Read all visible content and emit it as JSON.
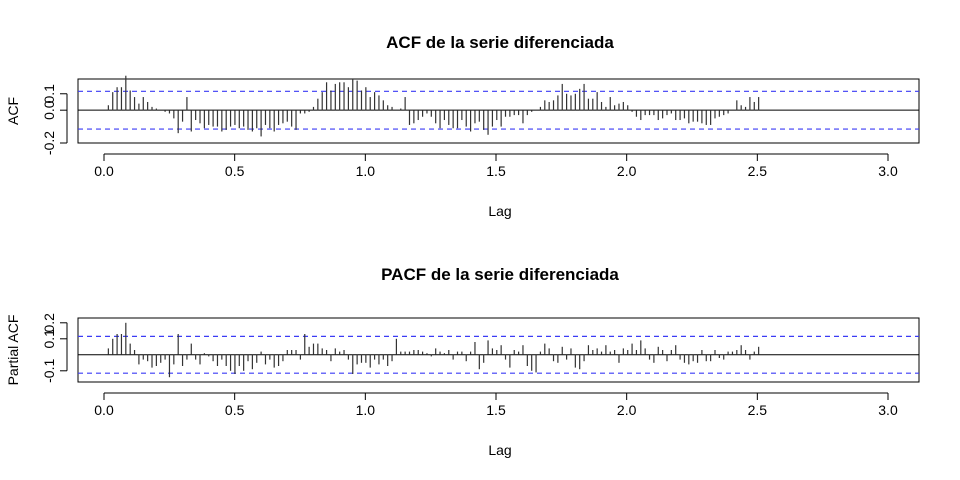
{
  "chart_data": [
    {
      "type": "bar",
      "title": "ACF de la serie diferenciada",
      "xlabel": "Lag",
      "ylabel": "ACF",
      "xlim": [
        0.0,
        3.0
      ],
      "ylim": [
        -0.2,
        0.19
      ],
      "x_ticks": [
        "0.0",
        "0.5",
        "1.0",
        "1.5",
        "2.0",
        "2.5",
        "3.0"
      ],
      "y_ticks": [
        "-0.2",
        "0.0",
        "0.1"
      ],
      "ci": 0.115,
      "lag_step": 0.0167,
      "values": [
        0.03,
        0.11,
        0.14,
        0.14,
        0.21,
        0.12,
        0.08,
        0.04,
        0.08,
        0.05,
        0.02,
        0.01,
        0.0,
        -0.01,
        -0.02,
        -0.05,
        -0.14,
        -0.07,
        0.08,
        -0.13,
        -0.06,
        -0.08,
        -0.11,
        -0.09,
        -0.1,
        -0.1,
        -0.13,
        -0.12,
        -0.1,
        -0.09,
        -0.11,
        -0.1,
        -0.12,
        -0.13,
        -0.11,
        -0.16,
        -0.09,
        -0.11,
        -0.13,
        -0.09,
        -0.08,
        -0.07,
        -0.1,
        -0.12,
        -0.02,
        -0.02,
        -0.01,
        0.02,
        0.07,
        0.11,
        0.17,
        0.12,
        0.16,
        0.17,
        0.17,
        0.14,
        0.19,
        0.18,
        0.12,
        0.14,
        0.08,
        0.11,
        0.09,
        0.06,
        0.03,
        0.02,
        0.0,
        0.01,
        0.08,
        -0.09,
        -0.08,
        -0.06,
        -0.04,
        -0.02,
        -0.04,
        -0.08,
        -0.11,
        -0.06,
        -0.09,
        -0.11,
        -0.11,
        -0.06,
        -0.1,
        -0.13,
        -0.08,
        -0.07,
        -0.12,
        -0.15,
        -0.1,
        -0.06,
        -0.1,
        -0.04,
        -0.04,
        -0.03,
        -0.03,
        -0.08,
        -0.03,
        -0.01,
        0.0,
        0.02,
        0.06,
        0.05,
        0.06,
        0.09,
        0.16,
        0.1,
        0.09,
        0.1,
        0.13,
        0.16,
        0.07,
        0.07,
        0.11,
        0.05,
        0.02,
        0.08,
        0.03,
        0.04,
        0.05,
        0.03,
        -0.01,
        -0.04,
        -0.06,
        -0.03,
        -0.03,
        -0.03,
        -0.06,
        -0.05,
        -0.03,
        -0.02,
        -0.06,
        -0.06,
        -0.05,
        -0.08,
        -0.07,
        -0.07,
        -0.08,
        -0.09,
        -0.09,
        -0.05,
        -0.04,
        -0.03,
        -0.02,
        0.0,
        0.06,
        0.03,
        0.02,
        0.08,
        0.05,
        0.08
      ]
    },
    {
      "type": "bar",
      "title": "PACF de la serie diferenciada",
      "xlabel": "Lag",
      "ylabel": "Partial ACF",
      "xlim": [
        0.0,
        3.0
      ],
      "ylim": [
        -0.17,
        0.23
      ],
      "x_ticks": [
        "0.0",
        "0.5",
        "1.0",
        "1.5",
        "2.0",
        "2.5",
        "3.0"
      ],
      "y_ticks": [
        "-0.1",
        "0.1",
        "0.2"
      ],
      "ci": 0.115,
      "lag_step": 0.0167,
      "values": [
        0.04,
        0.1,
        0.13,
        0.13,
        0.2,
        0.07,
        0.03,
        -0.06,
        -0.03,
        -0.04,
        -0.08,
        -0.07,
        -0.05,
        -0.03,
        -0.14,
        -0.06,
        0.13,
        -0.07,
        -0.03,
        0.07,
        -0.03,
        -0.06,
        0.01,
        -0.01,
        -0.04,
        -0.07,
        -0.03,
        -0.07,
        -0.1,
        -0.12,
        -0.07,
        -0.1,
        -0.04,
        -0.09,
        -0.05,
        0.02,
        -0.06,
        -0.03,
        -0.08,
        -0.07,
        -0.04,
        0.03,
        0.03,
        0.03,
        -0.03,
        0.13,
        0.05,
        0.07,
        0.07,
        0.04,
        0.03,
        -0.04,
        0.04,
        0.02,
        0.03,
        -0.03,
        -0.12,
        -0.06,
        -0.05,
        -0.05,
        -0.08,
        -0.03,
        -0.06,
        -0.03,
        -0.07,
        -0.04,
        0.1,
        0.02,
        0.02,
        0.02,
        0.03,
        0.03,
        0.02,
        0.01,
        -0.01,
        0.04,
        0.02,
        0.01,
        0.03,
        -0.03,
        0.02,
        0.02,
        -0.04,
        0.02,
        0.08,
        -0.09,
        -0.05,
        0.09,
        0.04,
        0.03,
        0.06,
        -0.03,
        -0.08,
        0.03,
        0.02,
        0.06,
        -0.07,
        -0.1,
        -0.11,
        0.02,
        0.07,
        0.04,
        -0.04,
        -0.05,
        0.05,
        -0.03,
        0.04,
        -0.08,
        -0.09,
        -0.04,
        0.06,
        0.03,
        0.04,
        0.02,
        0.06,
        0.02,
        0.03,
        -0.05,
        0.04,
        0.03,
        0.07,
        0.03,
        0.09,
        0.04,
        -0.03,
        -0.05,
        0.05,
        0.03,
        -0.04,
        0.03,
        0.06,
        -0.03,
        -0.05,
        -0.06,
        -0.04,
        -0.05,
        0.03,
        -0.04,
        -0.04,
        0.03,
        -0.02,
        -0.03,
        0.02,
        0.02,
        0.03,
        0.06,
        0.03,
        -0.03,
        0.02,
        0.05
      ]
    }
  ]
}
